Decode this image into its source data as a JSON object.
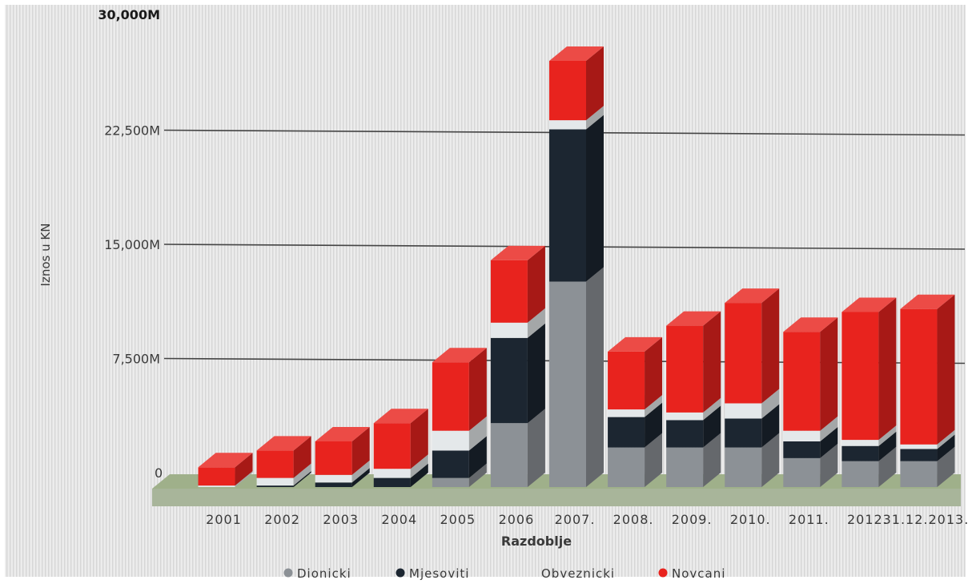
{
  "chart_data": {
    "type": "bar",
    "stacked": true,
    "style": "3d",
    "title": "",
    "xlabel": "Razdoblje",
    "ylabel": "Iznos u KN",
    "ylim": [
      0,
      30000
    ],
    "yticks": [
      0,
      7500,
      15000,
      22500,
      30000
    ],
    "ytick_labels": [
      "0",
      "7,500M",
      "15,000M",
      "22,500M",
      "30,000M"
    ],
    "grid": true,
    "legend_position": "bottom",
    "categories": [
      "2001",
      "2002",
      "2003",
      "2004",
      "2005",
      "2006",
      "2007.",
      "2008.",
      "2009.",
      "2010.",
      "2011.",
      "2012.",
      "31.12.2013."
    ],
    "series": [
      {
        "name": "Dionicki",
        "color": "#8c9196",
        "values": [
          0,
          0,
          0,
          0,
          600,
          4200,
          13500,
          2600,
          2600,
          2600,
          1900,
          1700,
          1700
        ]
      },
      {
        "name": "Mjesoviti",
        "color": "#1c2631",
        "values": [
          0,
          100,
          300,
          600,
          1800,
          5600,
          10000,
          2000,
          1800,
          1900,
          1100,
          1000,
          800
        ]
      },
      {
        "name": "Obveznicki",
        "color": "#e4e8ea",
        "values": [
          100,
          500,
          500,
          600,
          1300,
          1000,
          600,
          500,
          500,
          1000,
          700,
          400,
          300
        ]
      },
      {
        "name": "Novcani",
        "color": "#e8231e",
        "values": [
          1200,
          1800,
          2200,
          3000,
          4500,
          4100,
          3900,
          3800,
          5700,
          6600,
          6500,
          8400,
          8900
        ]
      }
    ]
  }
}
